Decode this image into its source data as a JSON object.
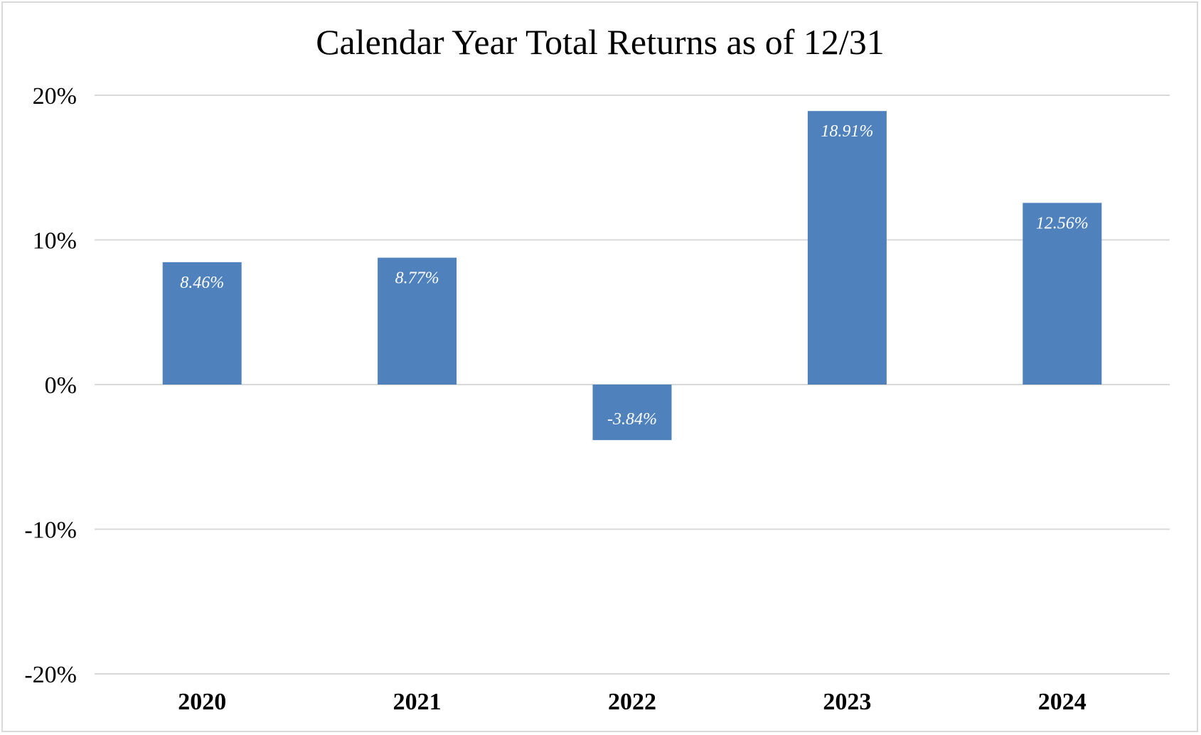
{
  "chart_data": {
    "type": "bar",
    "title": "Calendar Year Total Returns as of 12/31",
    "categories": [
      "2020",
      "2021",
      "2022",
      "2023",
      "2024"
    ],
    "values": [
      8.46,
      8.77,
      -3.84,
      18.91,
      12.56
    ],
    "data_labels": [
      "8.46%",
      "8.77%",
      "-3.84%",
      "18.91%",
      "12.56%"
    ],
    "ylim": [
      -20,
      20
    ],
    "yticks": [
      20,
      10,
      0,
      -10,
      -20
    ],
    "ytick_labels": [
      "20%",
      "10%",
      "0%",
      "-10%",
      "-20%"
    ],
    "grid": true,
    "legend": "none",
    "colors": {
      "bar": "#4f81bd",
      "grid": "#d9d9d9",
      "label": "#ffffff"
    }
  }
}
